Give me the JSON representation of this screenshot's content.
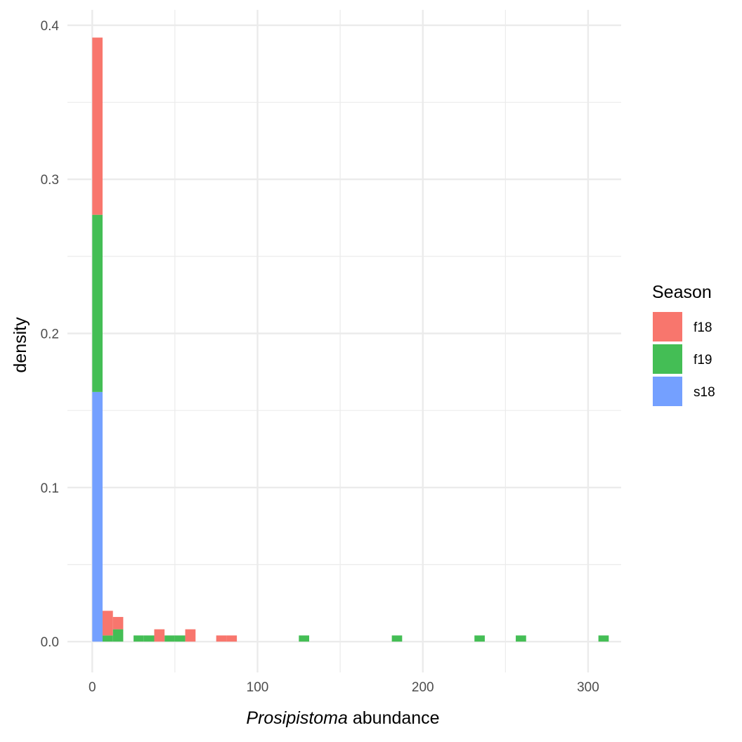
{
  "chart_data": {
    "type": "bar",
    "stacked": true,
    "title": "",
    "xlabel_italic": "Prosipistoma",
    "xlabel_rest": " abundance",
    "ylabel": "density",
    "xlim": [
      -15,
      320
    ],
    "ylim": [
      -0.02,
      0.41
    ],
    "xticks": [
      0,
      100,
      200,
      300
    ],
    "yticks": [
      0.0,
      0.1,
      0.2,
      0.3,
      0.4
    ],
    "xtick_labels": [
      "0",
      "100",
      "200",
      "300"
    ],
    "ytick_labels": [
      "0.0",
      "0.1",
      "0.2",
      "0.3",
      "0.4"
    ],
    "grid": true,
    "bin_width": 6.25,
    "legend": {
      "title": "Season",
      "position": "right",
      "entries": [
        {
          "name": "f18",
          "color": "#F8766D"
        },
        {
          "name": "f19",
          "color": "#44BE55"
        },
        {
          "name": "s18",
          "color": "#74A0FF"
        }
      ]
    },
    "series": [
      {
        "name": "s18",
        "color": "#74A0FF",
        "bins": [
          [
            0,
            0.162
          ]
        ]
      },
      {
        "name": "f19",
        "color": "#44BE55",
        "bins": [
          [
            0,
            0.115
          ],
          [
            6.25,
            0.004
          ],
          [
            12.5,
            0.008
          ],
          [
            25,
            0.004
          ],
          [
            31.25,
            0.004
          ],
          [
            43.75,
            0.004
          ],
          [
            50,
            0.004
          ],
          [
            125,
            0.004
          ],
          [
            181.25,
            0.004
          ],
          [
            231.25,
            0.004
          ],
          [
            256.25,
            0.004
          ],
          [
            306.25,
            0.004
          ]
        ]
      },
      {
        "name": "f18",
        "color": "#F8766D",
        "bins": [
          [
            0,
            0.115
          ],
          [
            6.25,
            0.016
          ],
          [
            12.5,
            0.008
          ],
          [
            37.5,
            0.008
          ],
          [
            56.25,
            0.008
          ],
          [
            75,
            0.004
          ],
          [
            81.25,
            0.004
          ]
        ]
      }
    ]
  }
}
